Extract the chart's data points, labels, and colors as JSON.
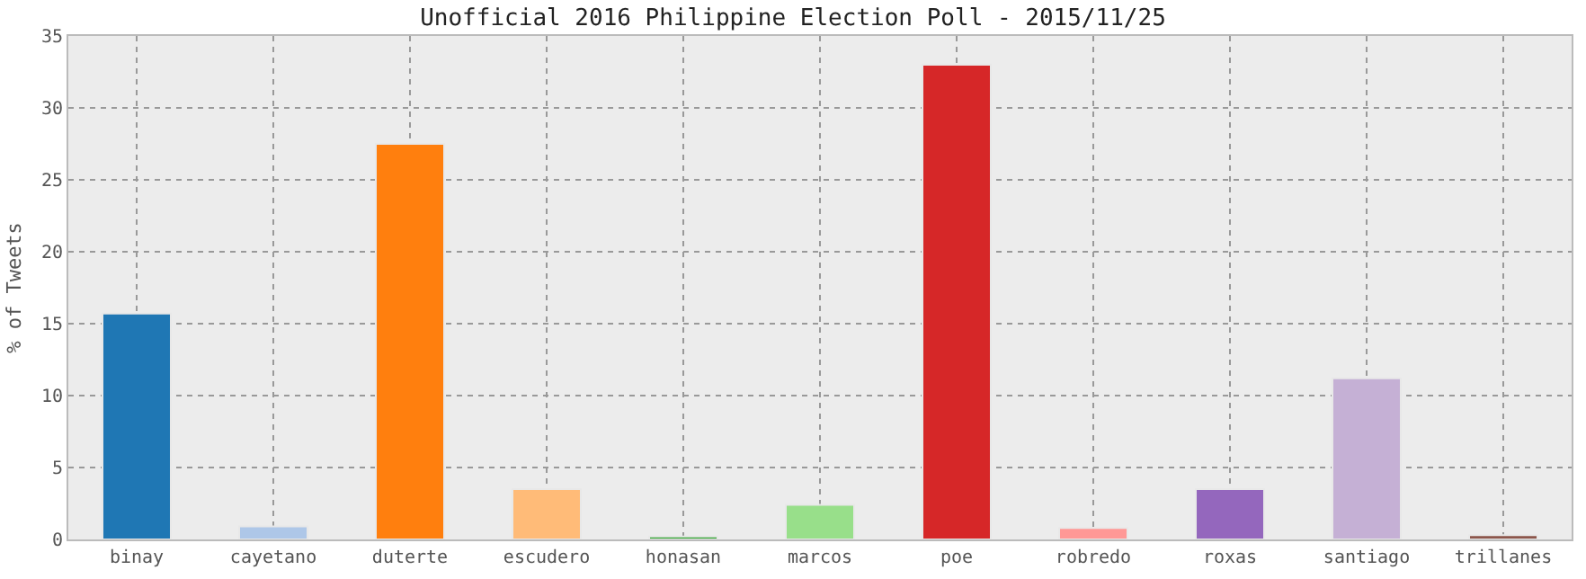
{
  "chart_data": {
    "type": "bar",
    "title": "Unofficial 2016 Philippine Election Poll - 2015/11/25",
    "ylabel": "% of Tweets",
    "categories": [
      "binay",
      "cayetano",
      "duterte",
      "escudero",
      "honasan",
      "marcos",
      "poe",
      "robredo",
      "roxas",
      "santiago",
      "trillanes"
    ],
    "values": [
      15.7,
      0.9,
      27.5,
      3.5,
      0.2,
      2.4,
      33.0,
      0.8,
      3.5,
      11.2,
      0.3
    ],
    "colors": [
      "#1f77b4",
      "#aec7e8",
      "#ff7f0e",
      "#ffbb78",
      "#2ca02c",
      "#98df8a",
      "#d62728",
      "#ff9896",
      "#9467bd",
      "#c5b0d5",
      "#8c564b"
    ],
    "ylim": [
      0,
      35
    ],
    "yticks": [
      0,
      5,
      10,
      15,
      20,
      25,
      30,
      35
    ],
    "grid": true
  }
}
